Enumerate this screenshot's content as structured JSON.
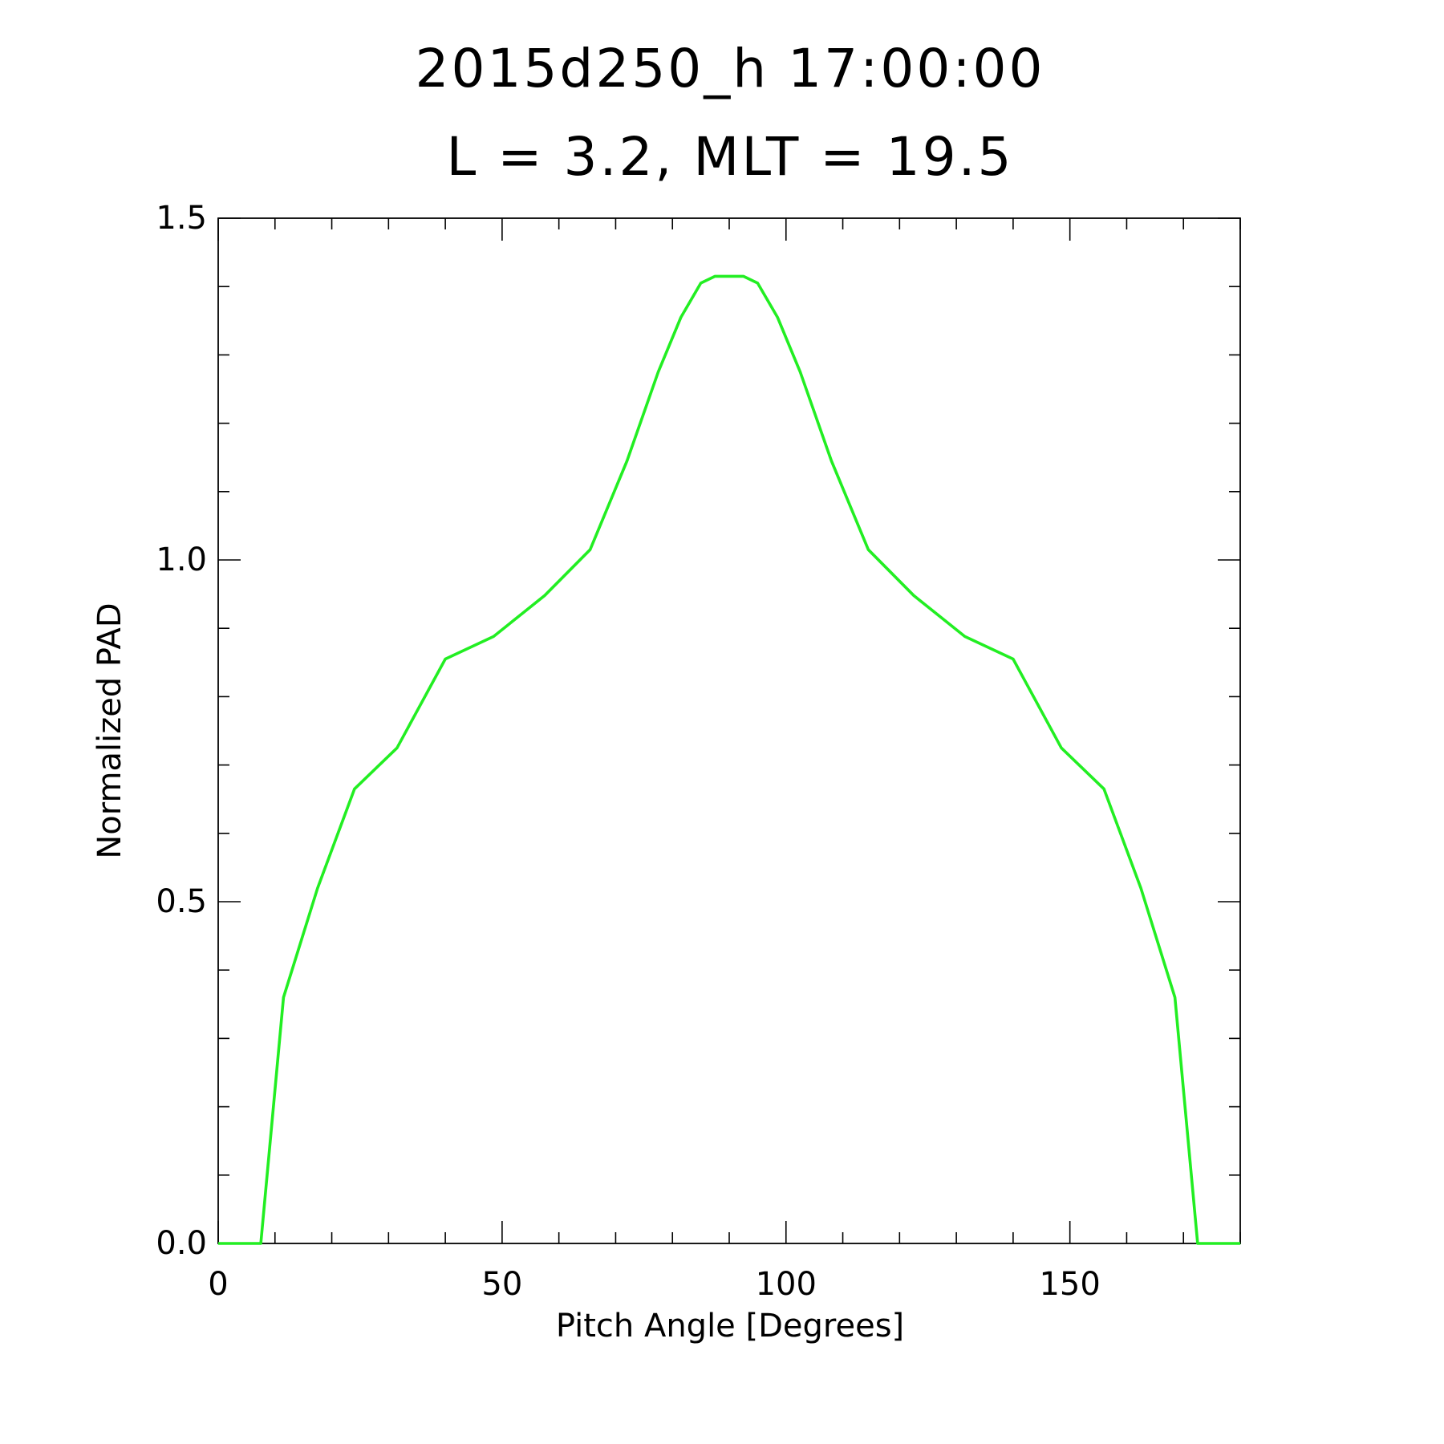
{
  "chart_data": {
    "type": "line",
    "title": [
      "2015d250_h   17:00:00",
      "L = 3.2, MLT = 19.5"
    ],
    "xlabel": "Pitch Angle [Degrees]",
    "ylabel": "Normalized PAD",
    "xlim": [
      0,
      180
    ],
    "ylim": [
      0,
      1.5
    ],
    "xticks": [
      0,
      50,
      100,
      150
    ],
    "xtick_labels": [
      "0",
      "50",
      "100",
      "150"
    ],
    "xminor_step": 10,
    "yticks": [
      0,
      0.5,
      1.0,
      1.5
    ],
    "ytick_labels": [
      "0.0",
      "0.5",
      "1.0",
      "1.5"
    ],
    "yminor_step": 0.1,
    "grid": false,
    "series": [
      {
        "color": "#22ee22",
        "x": [
          0,
          7.5,
          11.5,
          17.5,
          24,
          31.5,
          40,
          48.5,
          57.5,
          65.5,
          72,
          77.5,
          81.5,
          85,
          87.5,
          92.5,
          95,
          98.5,
          102.5,
          108,
          114.5,
          122.5,
          131.5,
          140,
          148.5,
          156,
          162.5,
          168.5,
          172.5,
          180
        ],
        "y": [
          0,
          0,
          0.36,
          0.52,
          0.665,
          0.725,
          0.855,
          0.888,
          0.948,
          1.015,
          1.145,
          1.275,
          1.355,
          1.405,
          1.415,
          1.415,
          1.405,
          1.355,
          1.275,
          1.145,
          1.015,
          0.948,
          0.888,
          0.855,
          0.725,
          0.665,
          0.52,
          0.36,
          0,
          0
        ]
      }
    ]
  }
}
